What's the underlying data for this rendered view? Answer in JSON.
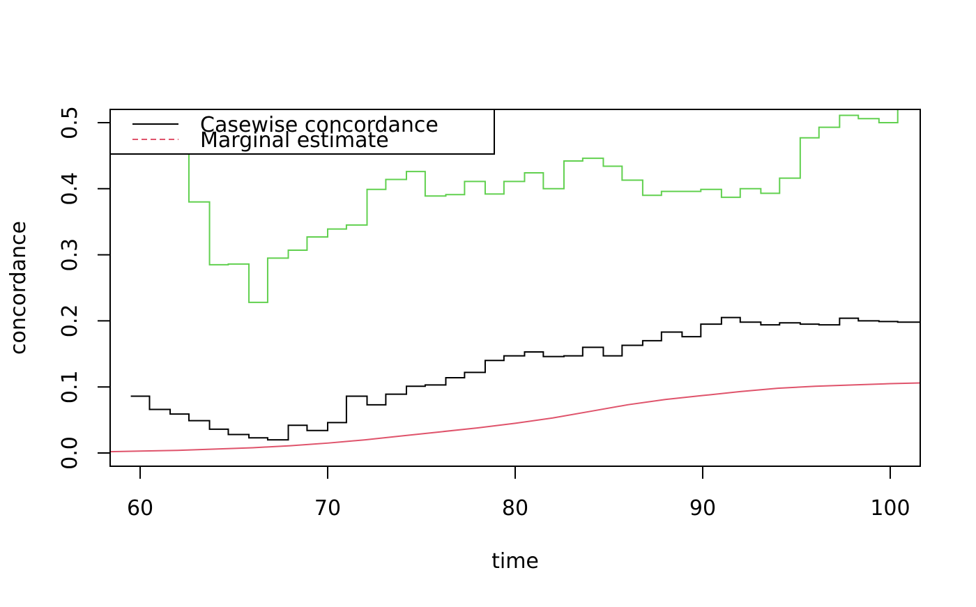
{
  "chart_data": {
    "type": "line",
    "title": "",
    "xlabel": "time",
    "ylabel": "concordance",
    "xlim": [
      58.4,
      101.6
    ],
    "ylim": [
      -0.02,
      0.52
    ],
    "grid": false,
    "legend_position": "top-left",
    "x_ticks": [
      60,
      70,
      80,
      90,
      100
    ],
    "x_tick_labels": [
      "60",
      "70",
      "80",
      "90",
      "100"
    ],
    "y_ticks": [
      0.0,
      0.1,
      0.2,
      0.3,
      0.4,
      0.5
    ],
    "y_tick_labels": [
      "0.0",
      "0.1",
      "0.2",
      "0.3",
      "0.4",
      "0.5"
    ],
    "legend": [
      {
        "label": "Casewise concordance",
        "color": "#000000",
        "dash": "solid"
      },
      {
        "label": "Marginal estimate",
        "color": "#DF536B",
        "dash": "dashed"
      }
    ],
    "series": [
      {
        "name": "Casewise concordance",
        "color": "#000000",
        "style": "step",
        "x": [
          59.5,
          60.5,
          61.6,
          62.6,
          63.7,
          64.7,
          65.8,
          66.8,
          67.9,
          68.9,
          70.0,
          71.0,
          72.1,
          73.1,
          74.2,
          75.2,
          76.3,
          77.3,
          78.4,
          79.4,
          80.5,
          81.5,
          82.6,
          83.6,
          84.7,
          85.7,
          86.8,
          87.8,
          88.9,
          89.9,
          91.0,
          92.0,
          93.1,
          94.1,
          95.2,
          96.2,
          97.3,
          98.3,
          99.4,
          100.4,
          101.6
        ],
        "y": [
          0.086,
          0.066,
          0.059,
          0.049,
          0.036,
          0.028,
          0.023,
          0.02,
          0.042,
          0.034,
          0.046,
          0.086,
          0.073,
          0.089,
          0.101,
          0.103,
          0.114,
          0.122,
          0.14,
          0.147,
          0.153,
          0.146,
          0.147,
          0.16,
          0.147,
          0.163,
          0.17,
          0.183,
          0.176,
          0.195,
          0.205,
          0.198,
          0.194,
          0.197,
          0.195,
          0.194,
          0.204,
          0.2,
          0.199,
          0.198,
          0.198
        ]
      },
      {
        "name": "",
        "color": "#61D04F",
        "style": "step",
        "x": [
          60.5,
          61.6,
          62.6,
          63.7,
          64.7,
          65.8,
          66.8,
          67.9,
          68.9,
          70.0,
          71.0,
          72.1,
          73.1,
          74.2,
          75.2,
          76.3,
          77.3,
          78.4,
          79.4,
          80.5,
          81.5,
          82.6,
          83.6,
          84.7,
          85.7,
          86.8,
          87.8,
          88.9,
          89.9,
          91.0,
          92.0,
          93.1,
          94.1,
          95.2,
          96.2,
          97.3,
          98.3,
          99.4,
          100.4,
          101.6
        ],
        "y": [
          0.52,
          0.467,
          0.38,
          0.285,
          0.286,
          0.228,
          0.295,
          0.307,
          0.327,
          0.339,
          0.345,
          0.399,
          0.414,
          0.426,
          0.389,
          0.391,
          0.411,
          0.392,
          0.411,
          0.424,
          0.4,
          0.442,
          0.446,
          0.434,
          0.413,
          0.39,
          0.396,
          0.396,
          0.399,
          0.387,
          0.4,
          0.393,
          0.416,
          0.477,
          0.493,
          0.511,
          0.506,
          0.5,
          0.52,
          0.52
        ]
      },
      {
        "name": "Marginal estimate",
        "color": "#DF536B",
        "style": "line",
        "x": [
          58.4,
          60,
          62,
          64,
          66,
          68,
          70,
          72,
          74,
          76,
          78,
          80,
          82,
          84,
          86,
          88,
          90,
          92,
          94,
          96,
          98,
          100,
          101.6
        ],
        "y": [
          0.002,
          0.003,
          0.004,
          0.006,
          0.008,
          0.011,
          0.015,
          0.02,
          0.026,
          0.032,
          0.038,
          0.045,
          0.053,
          0.063,
          0.073,
          0.081,
          0.087,
          0.093,
          0.098,
          0.101,
          0.103,
          0.105,
          0.106
        ]
      }
    ]
  }
}
